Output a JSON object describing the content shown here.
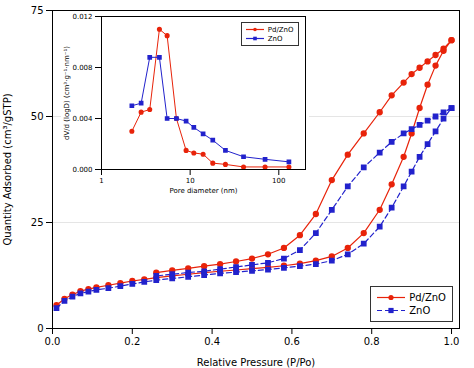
{
  "chart_data": [
    {
      "type": "line",
      "xlabel": "Relative Pressure (P/Po)",
      "ylabel": "Quantity Adsorbed (cm³/gSTP)",
      "xlim": [
        0,
        1.02
      ],
      "ylim": [
        0,
        75
      ],
      "xticks": [
        {
          "value": 0.0,
          "label": "0.0"
        },
        0.2,
        0.4,
        0.6,
        0.8,
        {
          "value": 1.0,
          "label": "1.0"
        }
      ],
      "yticks": [
        0,
        25,
        50,
        75
      ],
      "grid": "y",
      "legend": "lower right",
      "series": [
        {
          "name": "Pd/ZnO",
          "color": "#e8230a",
          "marker": "circle",
          "line_style": "solid",
          "x": [
            0.01,
            0.03,
            0.05,
            0.07,
            0.09,
            0.11,
            0.14,
            0.17,
            0.2,
            0.23,
            0.26,
            0.3,
            0.34,
            0.38,
            0.42,
            0.46,
            0.5,
            0.54,
            0.58,
            0.62,
            0.66,
            0.7,
            0.74,
            0.78,
            0.82,
            0.85,
            0.88,
            0.9,
            0.92,
            0.94,
            0.96,
            0.98,
            1.0
          ],
          "values": [
            5.5,
            7.0,
            8.0,
            8.8,
            9.3,
            9.7,
            10.2,
            10.7,
            11.2,
            11.6,
            12.0,
            12.4,
            12.8,
            13.2,
            13.5,
            13.8,
            14.1,
            14.4,
            14.8,
            15.3,
            16.0,
            17.0,
            19.0,
            22.5,
            28.0,
            34.0,
            40.5,
            46.0,
            52.0,
            57.5,
            62.0,
            65.5,
            68.0
          ]
        },
        {
          "color": "#e8230a",
          "marker": "circle",
          "line_style": "solid",
          "x": [
            1.0,
            0.98,
            0.96,
            0.94,
            0.92,
            0.9,
            0.88,
            0.85,
            0.82,
            0.78,
            0.74,
            0.7,
            0.66,
            0.62,
            0.58,
            0.54,
            0.5,
            0.46,
            0.42,
            0.38,
            0.34,
            0.3,
            0.26
          ],
          "values": [
            68.0,
            66.0,
            64.5,
            63.0,
            61.5,
            60.0,
            58.0,
            55.0,
            51.0,
            46.0,
            41.0,
            35.0,
            27.0,
            22.0,
            19.0,
            17.5,
            16.5,
            15.8,
            15.2,
            14.7,
            14.2,
            13.7,
            13.2
          ]
        },
        {
          "name": "ZnO",
          "color": "#2222cc",
          "marker": "square",
          "line_style": "dashed",
          "x": [
            0.01,
            0.03,
            0.05,
            0.07,
            0.09,
            0.11,
            0.14,
            0.17,
            0.2,
            0.23,
            0.26,
            0.3,
            0.34,
            0.38,
            0.42,
            0.46,
            0.5,
            0.54,
            0.58,
            0.62,
            0.66,
            0.7,
            0.74,
            0.78,
            0.82,
            0.85,
            0.88,
            0.9,
            0.92,
            0.94,
            0.96,
            0.98,
            1.0
          ],
          "values": [
            4.8,
            6.5,
            7.5,
            8.3,
            8.7,
            9.1,
            9.5,
            10.0,
            10.5,
            11.0,
            11.4,
            11.8,
            12.2,
            12.6,
            13.0,
            13.3,
            13.6,
            13.9,
            14.3,
            14.7,
            15.2,
            16.0,
            17.5,
            20.0,
            24.0,
            28.5,
            33.5,
            37.0,
            40.5,
            43.5,
            46.5,
            49.5,
            52.0
          ]
        },
        {
          "color": "#2222cc",
          "marker": "square",
          "line_style": "dashed",
          "x": [
            1.0,
            0.98,
            0.96,
            0.94,
            0.92,
            0.9,
            0.88,
            0.85,
            0.82,
            0.78,
            0.74,
            0.7,
            0.66,
            0.62,
            0.58,
            0.54,
            0.5,
            0.46,
            0.42,
            0.38,
            0.34,
            0.3,
            0.26
          ],
          "values": [
            52.0,
            51.0,
            50.0,
            49.0,
            48.0,
            47.0,
            46.0,
            44.0,
            41.5,
            38.0,
            33.5,
            28.0,
            22.5,
            18.5,
            16.5,
            15.5,
            15.0,
            14.5,
            14.0,
            13.5,
            13.2,
            12.8,
            12.4
          ]
        }
      ]
    },
    {
      "type": "line",
      "log": "x",
      "xlabel": "Pore diameter (nm)",
      "ylabel": "dV/d (logD) (cm³·g⁻¹·nm⁻¹)",
      "xlim": [
        1,
        200
      ],
      "xticks": [
        1,
        10,
        100
      ],
      "ylim": [
        0,
        0.012
      ],
      "yticks": [
        {
          "value": 0.0,
          "label": "0.000"
        },
        0.004,
        0.008,
        0.012
      ],
      "legend": "upper right",
      "series": [
        {
          "name": "Pd/ZnO",
          "color": "#e8230a",
          "marker": "circle",
          "line_style": "solid",
          "x": [
            2.2,
            2.8,
            3.5,
            4.5,
            5.5,
            7.0,
            9.0,
            11.0,
            14.0,
            18.0,
            25.0,
            40.0,
            70.0,
            130.0
          ],
          "values": [
            0.003,
            0.0045,
            0.0047,
            0.011,
            0.0105,
            0.004,
            0.0015,
            0.0013,
            0.0012,
            0.0005,
            0.0004,
            0.0002,
            0.0002,
            0.0002
          ]
        },
        {
          "name": "ZnO",
          "color": "#2222cc",
          "marker": "square",
          "line_style": "solid",
          "x": [
            2.2,
            2.8,
            3.5,
            4.5,
            5.5,
            7.0,
            9.0,
            11.0,
            14.0,
            18.0,
            25.0,
            40.0,
            70.0,
            130.0
          ],
          "values": [
            0.005,
            0.0052,
            0.0088,
            0.0088,
            0.004,
            0.004,
            0.0038,
            0.0033,
            0.0028,
            0.0023,
            0.0015,
            0.001,
            0.0008,
            0.0006
          ]
        }
      ]
    }
  ]
}
